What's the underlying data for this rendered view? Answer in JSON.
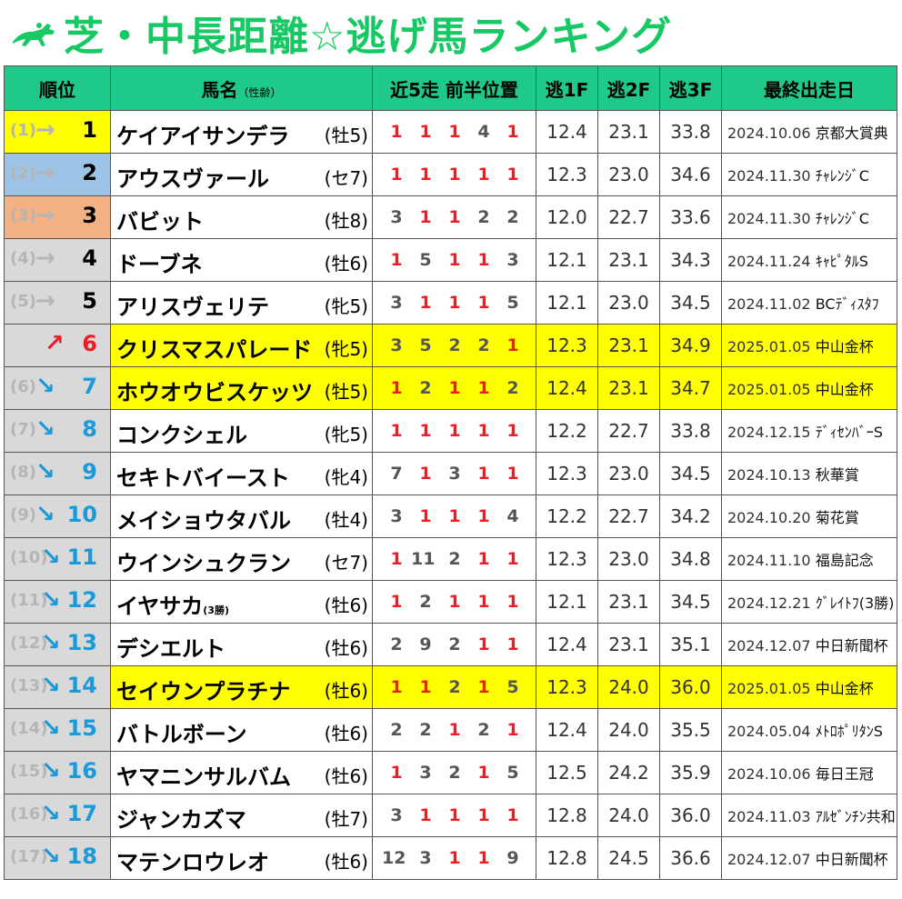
{
  "title": "芝・中長距離☆逃げ馬ランキング",
  "colors": {
    "title": "#17c964",
    "header_bg": "#1ec98a",
    "highlight": "#ffff00",
    "red": "#ee1c24",
    "blue": "#1a9ad9",
    "gold": "#ffff00",
    "silver": "#9dc3e6",
    "bronze": "#f4b183",
    "gray": "#d9d9d9"
  },
  "headers": {
    "rank": "順位",
    "name": "馬名",
    "name_sub": "（性齢）",
    "recent": "近5走 前半位置",
    "f1": "逃1F",
    "f2": "逃2F",
    "f3": "逃3F",
    "last": "最終出走日"
  },
  "rows": [
    {
      "prev": "(1)",
      "arrow": "→",
      "rank": "1",
      "name": "ケイアイサンデラ",
      "sub": "",
      "sex": "(牡5)",
      "recent": [
        "1",
        "1",
        "1",
        "4",
        "1"
      ],
      "f1": "12.4",
      "f2": "23.1",
      "f3": "33.8",
      "date": "2024.10.06",
      "race": "京都大賞典",
      "rank_bg": "gold",
      "hl": false
    },
    {
      "prev": "(2)",
      "arrow": "→",
      "rank": "2",
      "name": "アウスヴァール",
      "sub": "",
      "sex": "(セ7)",
      "recent": [
        "1",
        "1",
        "1",
        "1",
        "1"
      ],
      "f1": "12.3",
      "f2": "23.0",
      "f3": "34.6",
      "date": "2024.11.30",
      "race": "ﾁｬﾚﾝｼﾞC",
      "rank_bg": "silver",
      "hl": false
    },
    {
      "prev": "(3)",
      "arrow": "→",
      "rank": "3",
      "name": "バビット",
      "sub": "",
      "sex": "(牡8)",
      "recent": [
        "3",
        "1",
        "1",
        "2",
        "2"
      ],
      "f1": "12.0",
      "f2": "22.7",
      "f3": "33.6",
      "date": "2024.11.30",
      "race": "ﾁｬﾚﾝｼﾞC",
      "rank_bg": "bronze",
      "hl": false
    },
    {
      "prev": "(4)",
      "arrow": "→",
      "rank": "4",
      "name": "ドーブネ",
      "sub": "",
      "sex": "(牡6)",
      "recent": [
        "1",
        "5",
        "1",
        "1",
        "3"
      ],
      "f1": "12.1",
      "f2": "23.1",
      "f3": "34.3",
      "date": "2024.11.24",
      "race": "ｷｬﾋﾟﾀﾙS",
      "rank_bg": "gray",
      "hl": false
    },
    {
      "prev": "(5)",
      "arrow": "→",
      "rank": "5",
      "name": "アリスヴェリテ",
      "sub": "",
      "sex": "(牝5)",
      "recent": [
        "3",
        "1",
        "1",
        "1",
        "5"
      ],
      "f1": "12.1",
      "f2": "23.0",
      "f3": "34.5",
      "date": "2024.11.02",
      "race": "BCﾃﾞｨｽﾀﾌ",
      "rank_bg": "gray",
      "hl": false
    },
    {
      "prev": "",
      "arrow": "↗",
      "rank": "6",
      "name": "クリスマスパレード",
      "sub": "",
      "sex": "(牝5)",
      "recent": [
        "3",
        "5",
        "2",
        "2",
        "1"
      ],
      "f1": "12.3",
      "f2": "23.1",
      "f3": "34.9",
      "date": "2025.01.05",
      "race": "中山金杯",
      "rank_bg": "gray",
      "hl": true
    },
    {
      "prev": "(6)",
      "arrow": "↘",
      "rank": "7",
      "name": "ホウオウビスケッツ",
      "sub": "",
      "sex": "(牡5)",
      "recent": [
        "1",
        "2",
        "1",
        "1",
        "2"
      ],
      "f1": "12.4",
      "f2": "23.1",
      "f3": "34.7",
      "date": "2025.01.05",
      "race": "中山金杯",
      "rank_bg": "gray",
      "hl": true
    },
    {
      "prev": "(7)",
      "arrow": "↘",
      "rank": "8",
      "name": "コンクシェル",
      "sub": "",
      "sex": "(牝5)",
      "recent": [
        "1",
        "1",
        "1",
        "1",
        "1"
      ],
      "f1": "12.2",
      "f2": "22.7",
      "f3": "33.8",
      "date": "2024.12.15",
      "race": "ﾃﾞｨｾﾝﾊﾞｰS",
      "rank_bg": "gray",
      "hl": false
    },
    {
      "prev": "(8)",
      "arrow": "↘",
      "rank": "9",
      "name": "セキトバイースト",
      "sub": "",
      "sex": "(牝4)",
      "recent": [
        "7",
        "1",
        "3",
        "1",
        "1"
      ],
      "f1": "12.3",
      "f2": "23.0",
      "f3": "34.5",
      "date": "2024.10.13",
      "race": "秋華賞",
      "rank_bg": "gray",
      "hl": false
    },
    {
      "prev": "(9)",
      "arrow": "↘",
      "rank": "10",
      "name": "メイショウタバル",
      "sub": "",
      "sex": "(牡4)",
      "recent": [
        "3",
        "1",
        "1",
        "1",
        "4"
      ],
      "f1": "12.2",
      "f2": "22.7",
      "f3": "34.2",
      "date": "2024.10.20",
      "race": "菊花賞",
      "rank_bg": "gray",
      "hl": false
    },
    {
      "prev": "(10)",
      "arrow": "↘",
      "rank": "11",
      "name": "ウインシュクラン",
      "sub": "",
      "sex": "(セ7)",
      "recent": [
        "1",
        "11",
        "2",
        "1",
        "1"
      ],
      "f1": "12.3",
      "f2": "23.0",
      "f3": "34.8",
      "date": "2024.11.10",
      "race": "福島記念",
      "rank_bg": "gray",
      "hl": false
    },
    {
      "prev": "(11)",
      "arrow": "↘",
      "rank": "12",
      "name": "イヤサカ",
      "sub": "(3勝)",
      "sex": "(牡6)",
      "recent": [
        "1",
        "2",
        "1",
        "1",
        "1"
      ],
      "f1": "12.1",
      "f2": "23.1",
      "f3": "34.5",
      "date": "2024.12.21",
      "race": "ｸﾞﾚｲﾄﾌ(3勝)",
      "rank_bg": "gray",
      "hl": false
    },
    {
      "prev": "(12)",
      "arrow": "↘",
      "rank": "13",
      "name": "デシエルト",
      "sub": "",
      "sex": "(牡6)",
      "recent": [
        "2",
        "9",
        "2",
        "1",
        "1"
      ],
      "f1": "12.4",
      "f2": "23.1",
      "f3": "35.1",
      "date": "2024.12.07",
      "race": "中日新聞杯",
      "rank_bg": "gray",
      "hl": false
    },
    {
      "prev": "(13)",
      "arrow": "↘",
      "rank": "14",
      "name": "セイウンプラチナ",
      "sub": "",
      "sex": "(牡6)",
      "recent": [
        "1",
        "1",
        "2",
        "1",
        "5"
      ],
      "f1": "12.3",
      "f2": "24.0",
      "f3": "36.0",
      "date": "2025.01.05",
      "race": "中山金杯",
      "rank_bg": "gray",
      "hl": true
    },
    {
      "prev": "(14)",
      "arrow": "↘",
      "rank": "15",
      "name": "バトルボーン",
      "sub": "",
      "sex": "(牡6)",
      "recent": [
        "2",
        "2",
        "1",
        "2",
        "1"
      ],
      "f1": "12.4",
      "f2": "24.0",
      "f3": "35.5",
      "date": "2024.05.04",
      "race": "ﾒﾄﾛﾎﾟﾘﾀﾝS",
      "rank_bg": "gray",
      "hl": false
    },
    {
      "prev": "(15)",
      "arrow": "↘",
      "rank": "16",
      "name": "ヤマニンサルバム",
      "sub": "",
      "sex": "(牡6)",
      "recent": [
        "1",
        "3",
        "2",
        "1",
        "5"
      ],
      "f1": "12.5",
      "f2": "24.2",
      "f3": "35.9",
      "date": "2024.10.06",
      "race": "毎日王冠",
      "rank_bg": "gray",
      "hl": false
    },
    {
      "prev": "(16)",
      "arrow": "↘",
      "rank": "17",
      "name": "ジャンカズマ",
      "sub": "",
      "sex": "(牡7)",
      "recent": [
        "3",
        "1",
        "1",
        "1",
        "1"
      ],
      "f1": "12.8",
      "f2": "24.0",
      "f3": "36.0",
      "date": "2024.11.03",
      "race": "ｱﾙｾﾞﾝﾁﾝ共和",
      "rank_bg": "gray",
      "hl": false
    },
    {
      "prev": "(17)",
      "arrow": "↘",
      "rank": "18",
      "name": "マテンロウレオ",
      "sub": "",
      "sex": "(牡6)",
      "recent": [
        "12",
        "3",
        "1",
        "1",
        "9"
      ],
      "f1": "12.8",
      "f2": "24.5",
      "f3": "36.6",
      "date": "2024.12.07",
      "race": "中日新聞杯",
      "rank_bg": "gray",
      "hl": false
    }
  ]
}
